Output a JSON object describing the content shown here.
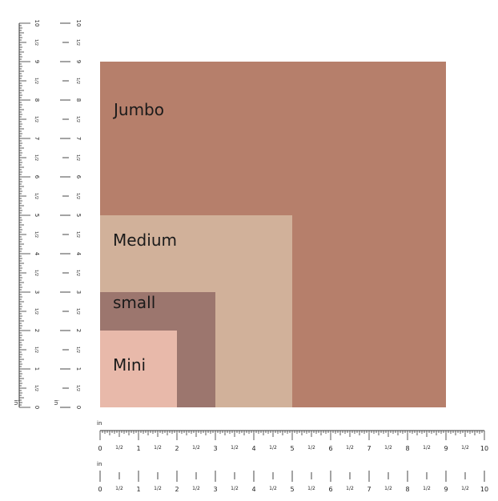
{
  "ruler": {
    "unit": "in",
    "major_labels": [
      "0",
      "1",
      "2",
      "3",
      "4",
      "5",
      "6",
      "7",
      "8",
      "9",
      "10"
    ],
    "half_label": "1/2",
    "range": [
      0,
      10
    ]
  },
  "sizes": [
    {
      "name": "Jumbo",
      "width_in": 9.0,
      "height_in": 9.0,
      "color": "#b67f6b"
    },
    {
      "name": "Medium",
      "width_in": 5.0,
      "height_in": 5.0,
      "color": "#d1b19a"
    },
    {
      "name": "small",
      "width_in": 3.0,
      "height_in": 3.0,
      "color": "#9c766e"
    },
    {
      "name": "Mini",
      "width_in": 2.0,
      "height_in": 2.0,
      "color": "#e8b9aa"
    }
  ]
}
